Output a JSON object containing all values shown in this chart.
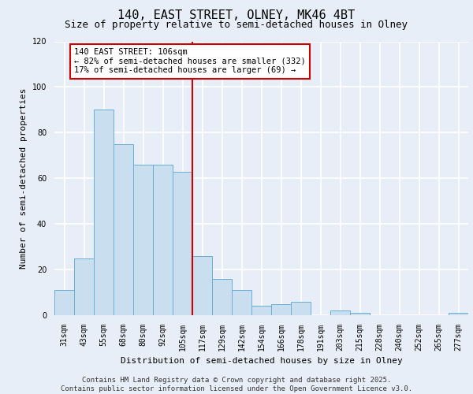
{
  "title": "140, EAST STREET, OLNEY, MK46 4BT",
  "subtitle": "Size of property relative to semi-detached houses in Olney",
  "xlabel": "Distribution of semi-detached houses by size in Olney",
  "ylabel": "Number of semi-detached properties",
  "categories": [
    "31sqm",
    "43sqm",
    "55sqm",
    "68sqm",
    "80sqm",
    "92sqm",
    "105sqm",
    "117sqm",
    "129sqm",
    "142sqm",
    "154sqm",
    "166sqm",
    "178sqm",
    "191sqm",
    "203sqm",
    "215sqm",
    "228sqm",
    "240sqm",
    "252sqm",
    "265sqm",
    "277sqm"
  ],
  "values": [
    11,
    25,
    90,
    75,
    66,
    66,
    63,
    26,
    16,
    11,
    4,
    5,
    6,
    0,
    2,
    1,
    0,
    0,
    0,
    0,
    1
  ],
  "bar_color": "#c9dff0",
  "bar_edge_color": "#6aaed6",
  "reference_line_index": 6,
  "reference_line_label": "140 EAST STREET: 106sqm",
  "annotation_line1": "← 82% of semi-detached houses are smaller (332)",
  "annotation_line2": "17% of semi-detached houses are larger (69) →",
  "annotation_box_color": "#ffffff",
  "annotation_box_edge": "#cc0000",
  "ref_line_color": "#cc0000",
  "ylim": [
    0,
    120
  ],
  "yticks": [
    0,
    20,
    40,
    60,
    80,
    100,
    120
  ],
  "background_color": "#e8eef7",
  "plot_background": "#e8eef7",
  "grid_color": "#ffffff",
  "footer_line1": "Contains HM Land Registry data © Crown copyright and database right 2025.",
  "footer_line2": "Contains public sector information licensed under the Open Government Licence v3.0.",
  "title_fontsize": 11,
  "subtitle_fontsize": 9,
  "axis_label_fontsize": 8,
  "tick_fontsize": 7,
  "footer_fontsize": 6.5,
  "annotation_fontsize": 7.5
}
